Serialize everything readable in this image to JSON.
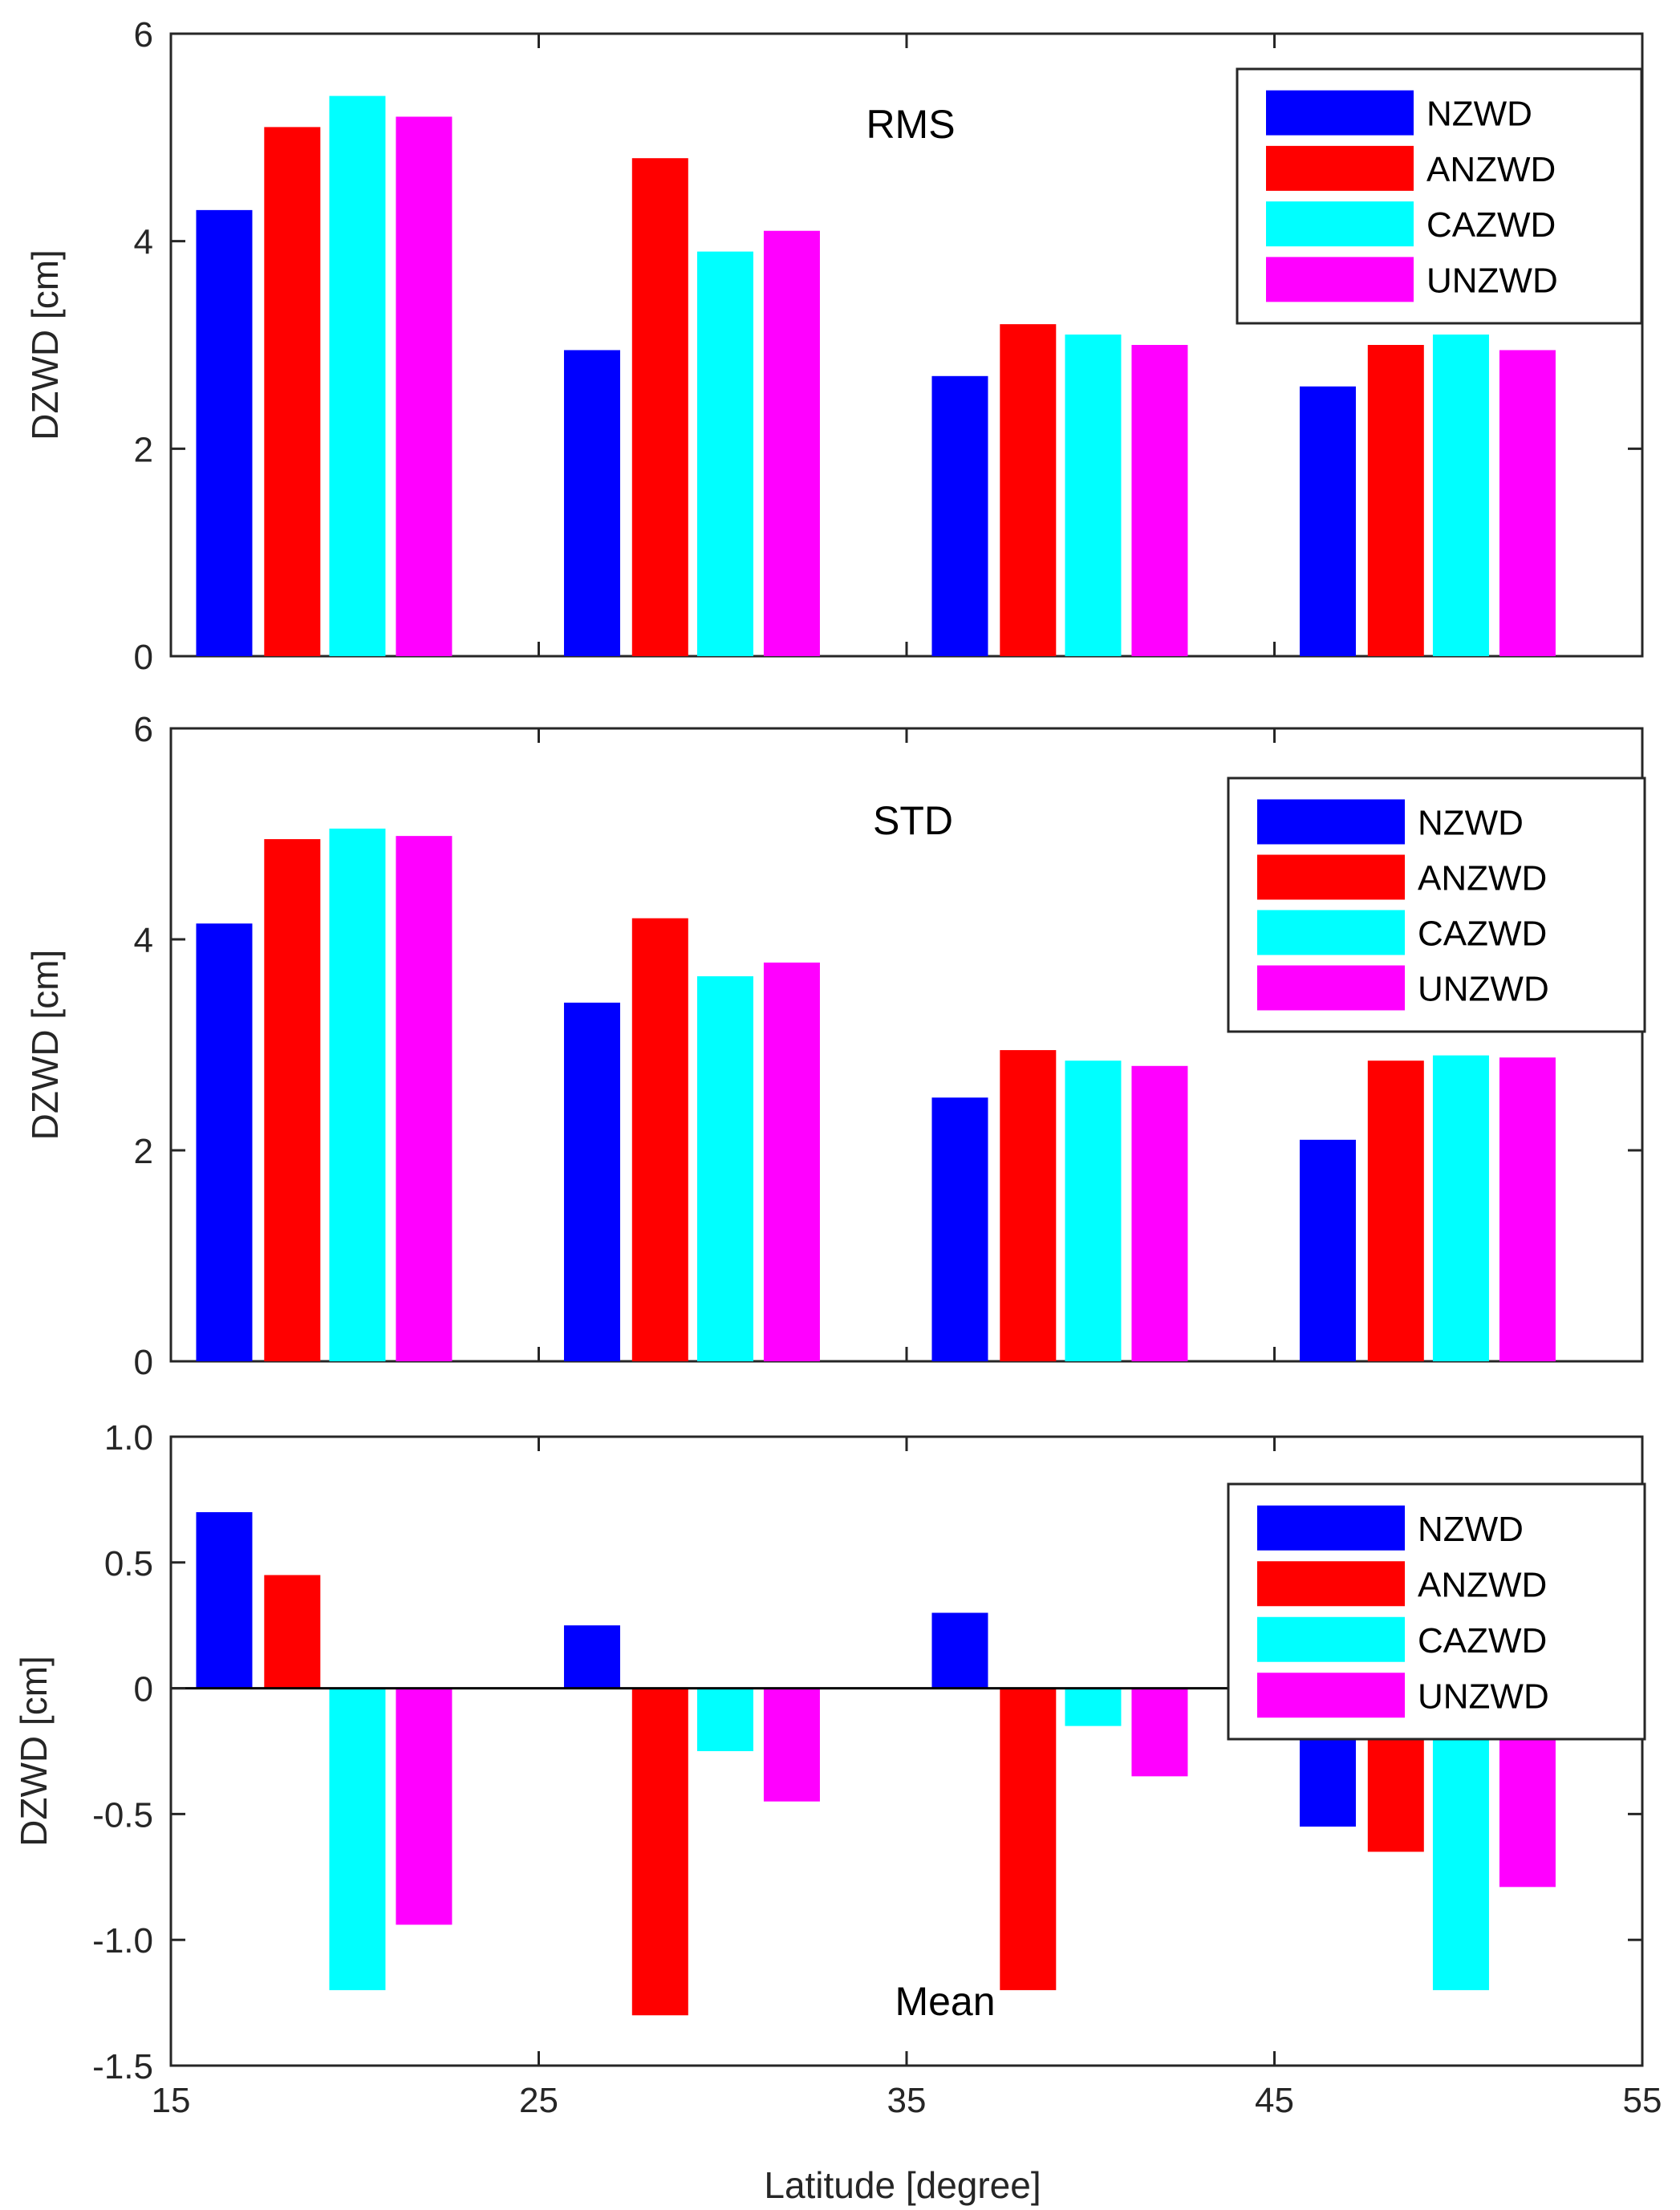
{
  "xlabel": "Latitude [degree]",
  "x_ticks": [
    "15",
    "25",
    "35",
    "45",
    "55"
  ],
  "chart_data": [
    {
      "type": "bar",
      "title": "RMS",
      "ylabel": "DZWD [cm]",
      "xlim": [
        15,
        55
      ],
      "ylim": [
        0,
        6
      ],
      "y_ticks": [
        "0",
        "2",
        "4",
        "6"
      ],
      "y_tick_values": [
        0,
        2,
        4,
        6
      ],
      "group_centers": [
        20,
        30,
        40,
        50
      ],
      "legend_position": "top-right",
      "series": [
        {
          "name": "NZWD",
          "color": "#0000ff",
          "values": [
            4.3,
            2.95,
            2.7,
            2.6
          ]
        },
        {
          "name": "ANZWD",
          "color": "#ff0000",
          "values": [
            5.1,
            4.8,
            3.2,
            3.0
          ]
        },
        {
          "name": "CAZWD",
          "color": "#00ffff",
          "values": [
            5.4,
            3.9,
            3.1,
            3.1
          ]
        },
        {
          "name": "UNZWD",
          "color": "#ff00ff",
          "values": [
            5.2,
            4.1,
            3.0,
            2.95
          ]
        }
      ]
    },
    {
      "type": "bar",
      "title": "STD",
      "ylabel": "DZWD [cm]",
      "xlim": [
        15,
        55
      ],
      "ylim": [
        0,
        6
      ],
      "y_ticks": [
        "0",
        "2",
        "4",
        "6"
      ],
      "y_tick_values": [
        0,
        2,
        4,
        6
      ],
      "group_centers": [
        20,
        30,
        40,
        50
      ],
      "legend_position": "top-right",
      "series": [
        {
          "name": "NZWD",
          "color": "#0000ff",
          "values": [
            4.15,
            3.4,
            2.5,
            2.1
          ]
        },
        {
          "name": "ANZWD",
          "color": "#ff0000",
          "values": [
            4.95,
            4.2,
            2.95,
            2.85
          ]
        },
        {
          "name": "CAZWD",
          "color": "#00ffff",
          "values": [
            5.05,
            3.65,
            2.85,
            2.9
          ]
        },
        {
          "name": "UNZWD",
          "color": "#ff00ff",
          "values": [
            4.98,
            3.78,
            2.8,
            2.88
          ]
        }
      ]
    },
    {
      "type": "bar",
      "title": "Mean",
      "ylabel": "DZWD [cm]",
      "xlim": [
        15,
        55
      ],
      "ylim": [
        -1.5,
        1.0
      ],
      "y_ticks": [
        "-1.5",
        "-1.0",
        "-0.5",
        "0",
        "0.5",
        "1.0"
      ],
      "y_tick_values": [
        -1.5,
        -1.0,
        -0.5,
        0,
        0.5,
        1.0
      ],
      "group_centers": [
        20,
        30,
        40,
        50
      ],
      "legend_position": "top-right",
      "series": [
        {
          "name": "NZWD",
          "color": "#0000ff",
          "values": [
            0.7,
            0.25,
            0.3,
            -0.55
          ]
        },
        {
          "name": "ANZWD",
          "color": "#ff0000",
          "values": [
            0.45,
            -1.3,
            -1.2,
            -0.65
          ]
        },
        {
          "name": "CAZWD",
          "color": "#00ffff",
          "values": [
            -1.2,
            -0.25,
            -0.15,
            -1.2
          ]
        },
        {
          "name": "UNZWD",
          "color": "#ff00ff",
          "values": [
            -0.94,
            -0.45,
            -0.35,
            -0.79
          ]
        }
      ]
    }
  ]
}
